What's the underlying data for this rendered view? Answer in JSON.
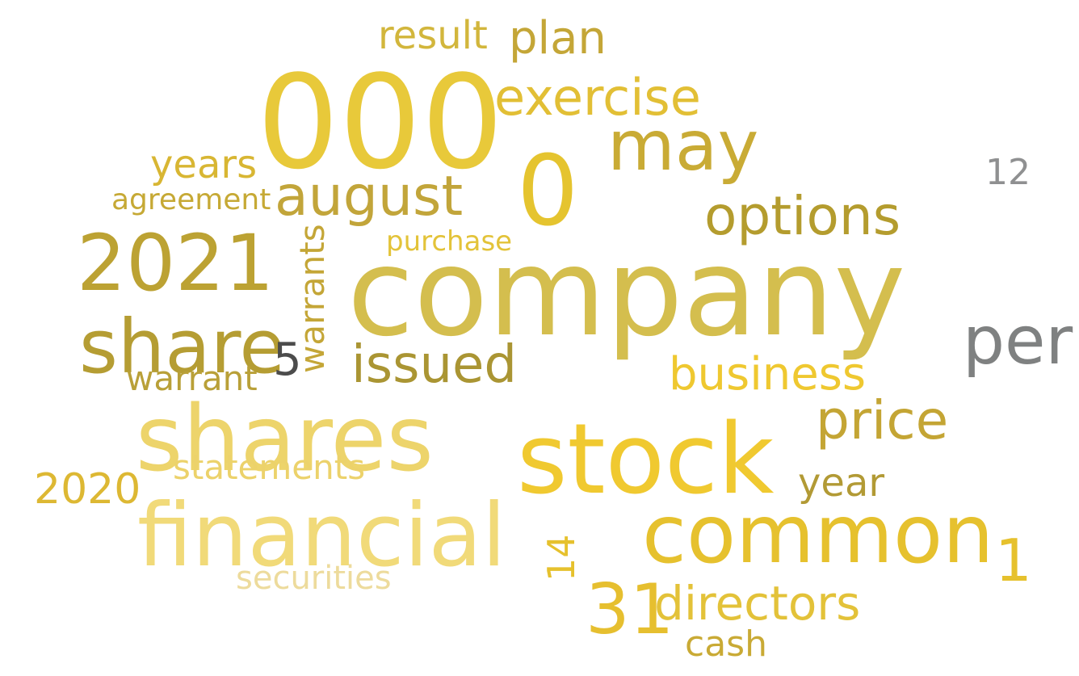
{
  "cloud": {
    "words": [
      {
        "text": "company",
        "color": "#d4be4e"
      },
      {
        "text": "000",
        "color": "#e8c93a"
      },
      {
        "text": "shares",
        "color": "#edd46b"
      },
      {
        "text": "stock",
        "color": "#f0c930"
      },
      {
        "text": "financial",
        "color": "#f1da79"
      },
      {
        "text": "common",
        "color": "#e6c12e"
      },
      {
        "text": "2021",
        "color": "#bca233"
      },
      {
        "text": "share",
        "color": "#b59d33"
      },
      {
        "text": "august",
        "color": "#c2a53a"
      },
      {
        "text": "0",
        "color": "#e5c42f"
      },
      {
        "text": "may",
        "color": "#c9ab35"
      },
      {
        "text": "31",
        "color": "#e6bf2f"
      },
      {
        "text": "directors",
        "color": "#e3c239"
      },
      {
        "text": "options",
        "color": "#b49c2e"
      },
      {
        "text": "business",
        "color": "#efc830"
      },
      {
        "text": "issued",
        "color": "#aa9533"
      },
      {
        "text": "exercise",
        "color": "#e2bf35"
      },
      {
        "text": "per",
        "color": "#7f8181"
      },
      {
        "text": "price",
        "color": "#c4a534"
      },
      {
        "text": "2020",
        "color": "#ddb833"
      },
      {
        "text": "statements",
        "color": "#ecd26b"
      },
      {
        "text": "plan",
        "color": "#c4a637"
      },
      {
        "text": "securities",
        "color": "#eddb9c"
      },
      {
        "text": "5",
        "color": "#4c4c4c"
      },
      {
        "text": "1",
        "color": "#e6c12d"
      },
      {
        "text": "years",
        "color": "#d8b633"
      },
      {
        "text": "result",
        "color": "#d2b63c"
      },
      {
        "text": "warrants",
        "color": "#c4a637"
      },
      {
        "text": "warrant",
        "color": "#b9a038"
      },
      {
        "text": "year",
        "color": "#b29a35"
      },
      {
        "text": "cash",
        "color": "#c9aa35"
      },
      {
        "text": "agreement",
        "color": "#c6a935"
      },
      {
        "text": "12",
        "color": "#8f9091"
      },
      {
        "text": "purchase",
        "color": "#e3c339"
      },
      {
        "text": "14",
        "color": "#e6c12d"
      }
    ]
  }
}
